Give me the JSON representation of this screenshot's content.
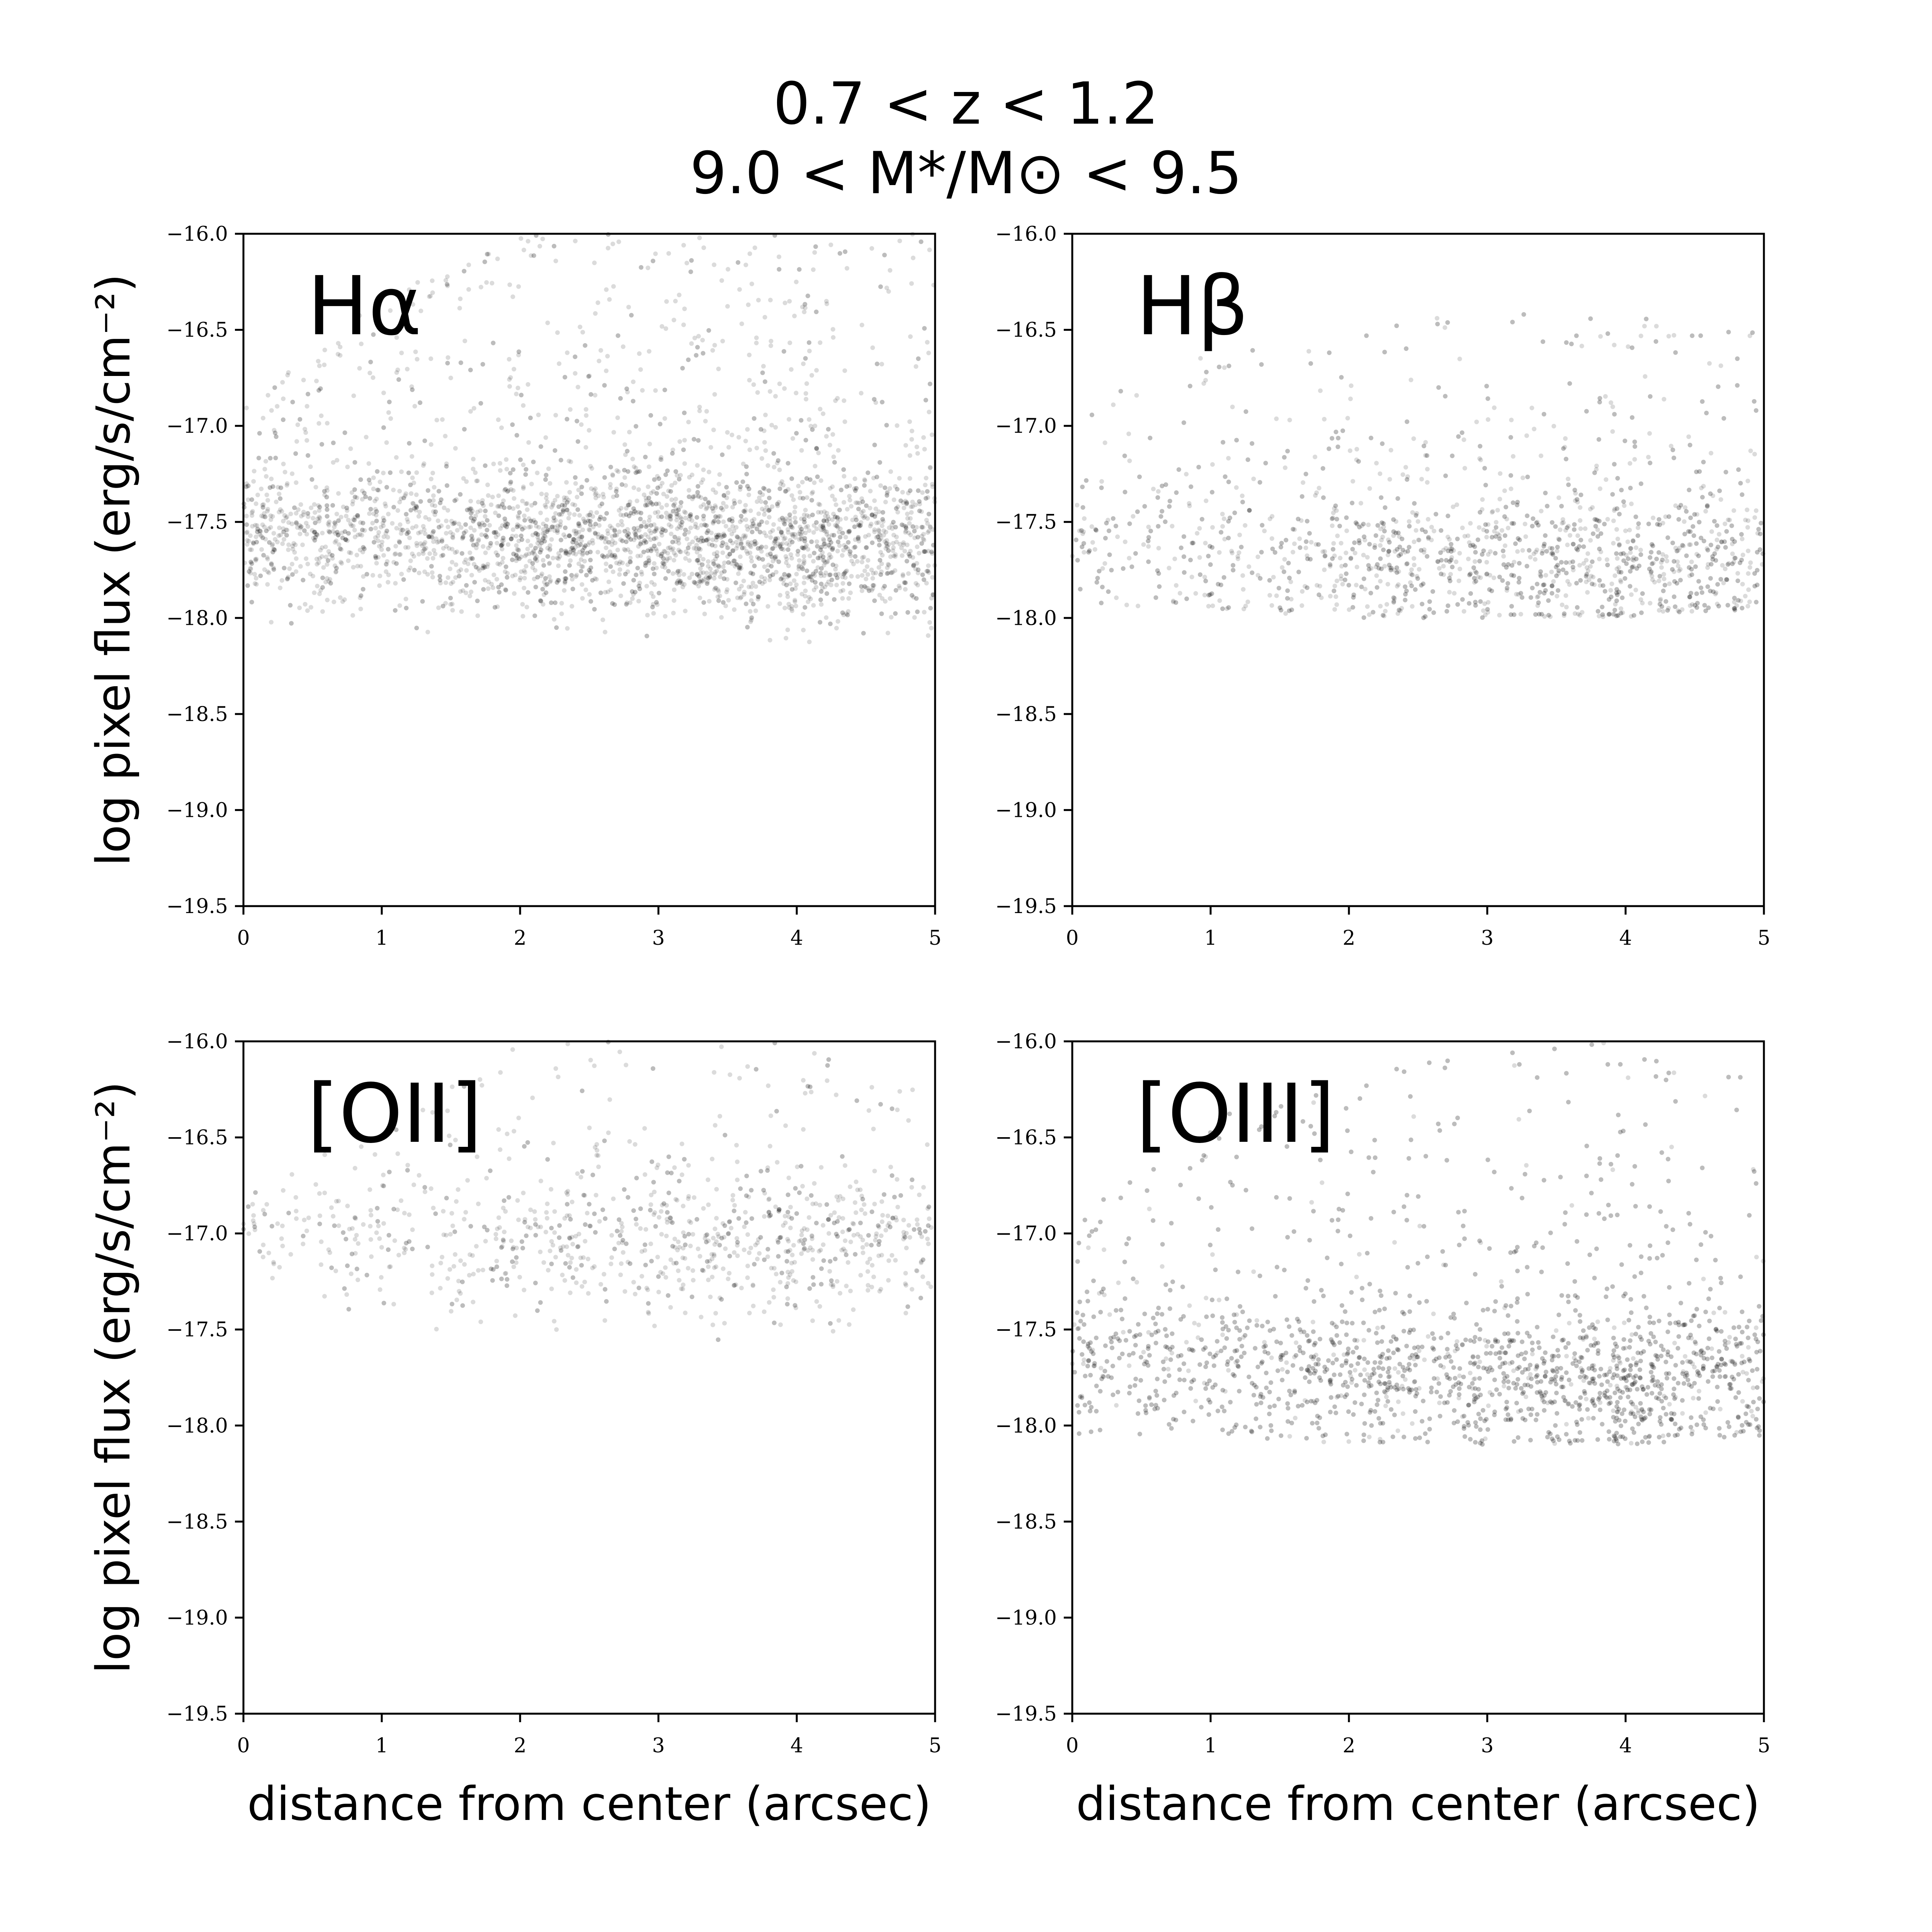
{
  "figure": {
    "title_line1": "0.7 < z < 1.2",
    "title_line2": "9.0 < M*/M⊙ < 9.5"
  },
  "chart_data": [
    {
      "type": "scatter",
      "panel_label": "Hα",
      "xlabel": "",
      "ylabel": "log pixel flux (erg/s/cm⁻²)",
      "xlim": [
        0,
        5
      ],
      "ylim": [
        -19.5,
        -16.0
      ],
      "xticks": [
        "0",
        "1",
        "2",
        "3",
        "4",
        "5"
      ],
      "yticks": [
        "−16.0",
        "−16.5",
        "−17.0",
        "−17.5",
        "−18.0",
        "−18.5",
        "−19.0",
        "−19.5"
      ],
      "density_profile": {
        "x": [
          0,
          1,
          2,
          3,
          4,
          5
        ],
        "y_center": [
          -17.6,
          -17.6,
          -17.6,
          -17.6,
          -17.65,
          -17.6
        ],
        "y_min": [
          -18.1,
          -18.1,
          -18.1,
          -18.1,
          -18.15,
          -18.1
        ],
        "y_max": [
          -16.9,
          -16.3,
          -16.0,
          -16.0,
          -16.0,
          -16.0
        ],
        "relative_density": [
          0.6,
          0.55,
          0.7,
          1.0,
          0.95,
          0.6
        ]
      }
    },
    {
      "type": "scatter",
      "panel_label": "Hβ",
      "xlabel": "",
      "ylabel": "",
      "xlim": [
        0,
        5
      ],
      "ylim": [
        -19.5,
        -16.0
      ],
      "xticks": [
        "0",
        "1",
        "2",
        "3",
        "4",
        "5"
      ],
      "yticks": [
        "−16.0",
        "−16.5",
        "−17.0",
        "−17.5",
        "−18.0",
        "−18.5",
        "−19.0",
        "−19.5"
      ],
      "density_profile": {
        "x": [
          0,
          1,
          2,
          3,
          4,
          5
        ],
        "y_center": [
          -17.7,
          -17.7,
          -17.7,
          -17.7,
          -17.75,
          -17.7
        ],
        "y_min": [
          -17.95,
          -17.95,
          -18.0,
          -18.0,
          -18.0,
          -17.95
        ],
        "y_max": [
          -16.8,
          -16.6,
          -16.5,
          -16.4,
          -16.4,
          -16.5
        ],
        "relative_density": [
          0.15,
          0.25,
          0.35,
          0.5,
          0.55,
          0.4
        ]
      }
    },
    {
      "type": "scatter",
      "panel_label": "[OII]",
      "xlabel": "distance from center (arcsec)",
      "ylabel": "log pixel flux (erg/s/cm⁻²)",
      "xlim": [
        0,
        5
      ],
      "ylim": [
        -19.5,
        -16.0
      ],
      "xticks": [
        "0",
        "1",
        "2",
        "3",
        "4",
        "5"
      ],
      "yticks": [
        "−16.0",
        "−16.5",
        "−17.0",
        "−17.5",
        "−18.0",
        "−18.5",
        "−19.0",
        "−19.5"
      ],
      "density_profile": {
        "x": [
          0,
          1,
          2,
          3,
          4,
          5
        ],
        "y_center": [
          -17.0,
          -17.05,
          -17.05,
          -17.05,
          -17.1,
          -17.0
        ],
        "y_min": [
          -17.3,
          -17.5,
          -17.55,
          -17.6,
          -17.55,
          -17.4
        ],
        "y_max": [
          -16.8,
          -16.4,
          -16.0,
          -16.0,
          -16.0,
          -16.3
        ],
        "relative_density": [
          0.1,
          0.15,
          0.2,
          0.3,
          0.35,
          0.25
        ]
      }
    },
    {
      "type": "scatter",
      "panel_label": "[OIII]",
      "xlabel": "distance from center (arcsec)",
      "ylabel": "",
      "xlim": [
        0,
        5
      ],
      "ylim": [
        -19.5,
        -16.0
      ],
      "xticks": [
        "0",
        "1",
        "2",
        "3",
        "4",
        "5"
      ],
      "yticks": [
        "−16.0",
        "−16.5",
        "−17.0",
        "−17.5",
        "−18.0",
        "−18.5",
        "−19.0",
        "−19.5"
      ],
      "density_profile": {
        "x": [
          0,
          1,
          2,
          3,
          4,
          5
        ],
        "y_center": [
          -17.7,
          -17.7,
          -17.75,
          -17.75,
          -17.8,
          -17.75
        ],
        "y_min": [
          -18.05,
          -18.05,
          -18.1,
          -18.1,
          -18.1,
          -18.05
        ],
        "y_max": [
          -16.9,
          -16.4,
          -16.2,
          -16.0,
          -16.0,
          -16.2
        ],
        "relative_density": [
          0.45,
          0.4,
          0.55,
          0.7,
          0.85,
          0.55
        ]
      }
    }
  ]
}
